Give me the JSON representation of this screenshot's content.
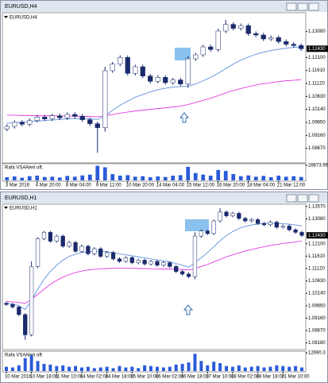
{
  "chart_data": [
    {
      "type": "candlestick",
      "title": "EURUSD,H4",
      "up_color": "#ffffff",
      "down_color": "#1a2a6c",
      "outline": "#1a2a6c",
      "categories": [
        "3 Mar 2016",
        null,
        null,
        null,
        "4 Mar 20:00",
        null,
        null,
        null,
        "8 Mar 04:00",
        null,
        null,
        null,
        "9 Mar 12:00",
        null,
        null,
        null,
        "10 Mar 20:00",
        null,
        null,
        null,
        "14 Mar 04:00",
        null,
        null,
        null,
        "15 Mar 12:00",
        null,
        null,
        null,
        "16 Mar 20:00",
        null,
        null,
        null,
        "18 Mar 04:00",
        null,
        null,
        null,
        "21 Mar 12:00",
        null,
        null,
        null
      ],
      "open": [
        1.094,
        1.095,
        1.0965,
        1.0958,
        1.0972,
        1.0985,
        1.0978,
        1.099,
        1.0982,
        1.0995,
        1.0988,
        1.0975,
        1.096,
        1.0945,
        1.116,
        1.1185,
        1.121,
        1.115,
        1.1175,
        1.114,
        1.112,
        1.1135,
        1.1115,
        1.1125,
        1.111,
        1.1205,
        1.122,
        1.125,
        1.124,
        1.131,
        1.1335,
        1.132,
        1.133,
        1.13,
        1.1295,
        1.128,
        1.1285,
        1.127,
        1.126,
        1.1255
      ],
      "high": [
        1.0958,
        1.0973,
        1.0973,
        1.098,
        1.0993,
        1.0993,
        1.0998,
        1.0998,
        1.1003,
        1.1003,
        1.0996,
        1.0983,
        1.0968,
        1.1175,
        1.1193,
        1.1218,
        1.1218,
        1.1183,
        1.1183,
        1.1148,
        1.1143,
        1.1143,
        1.1133,
        1.1133,
        1.1215,
        1.1228,
        1.1258,
        1.1258,
        1.1318,
        1.1352,
        1.1343,
        1.1338,
        1.1338,
        1.1308,
        1.1303,
        1.1293,
        1.1293,
        1.1278,
        1.1268,
        1.1263
      ],
      "low": [
        1.0932,
        1.0942,
        1.095,
        1.095,
        1.0964,
        1.097,
        1.097,
        1.0974,
        1.0974,
        1.098,
        1.0967,
        1.0952,
        1.085,
        1.093,
        1.1152,
        1.1177,
        1.1142,
        1.1142,
        1.1132,
        1.1112,
        1.1112,
        1.1107,
        1.1107,
        1.1102,
        1.1095,
        1.1197,
        1.1212,
        1.1232,
        1.1232,
        1.1302,
        1.1312,
        1.1312,
        1.1292,
        1.1287,
        1.1272,
        1.1272,
        1.1262,
        1.1252,
        1.1247,
        1.1235
      ],
      "close": [
        1.095,
        1.0965,
        1.0958,
        1.0972,
        1.0985,
        1.0978,
        1.099,
        1.0982,
        1.0995,
        1.0988,
        1.0975,
        1.096,
        1.0945,
        1.116,
        1.1185,
        1.121,
        1.115,
        1.1175,
        1.114,
        1.112,
        1.1135,
        1.1115,
        1.1125,
        1.111,
        1.1205,
        1.122,
        1.125,
        1.124,
        1.131,
        1.1335,
        1.132,
        1.133,
        1.13,
        1.1295,
        1.128,
        1.1285,
        1.127,
        1.126,
        1.1255,
        1.1243
      ],
      "ma_lines": [
        {
          "color": "#6f9be0",
          "values": [
            1.0962,
            1.0964,
            1.0966,
            1.0968,
            1.097,
            1.0972,
            1.0974,
            1.0976,
            1.0978,
            1.0979,
            1.0979,
            1.0978,
            1.0976,
            1.099,
            1.101,
            1.103,
            1.1045,
            1.106,
            1.107,
            1.108,
            1.1088,
            1.1094,
            1.1098,
            1.11,
            1.1102,
            1.111,
            1.1122,
            1.1135,
            1.115,
            1.1168,
            1.1185,
            1.12,
            1.1212,
            1.1222,
            1.123,
            1.1236,
            1.1241,
            1.1245,
            1.1248,
            1.125
          ]
        },
        {
          "color": "#e020e0",
          "values": [
            1.0992,
            1.0992,
            1.0991,
            1.0991,
            1.099,
            1.099,
            1.099,
            1.0989,
            1.0989,
            1.0988,
            1.0988,
            1.0987,
            1.0986,
            1.099,
            1.0995,
            1.1,
            1.1004,
            1.1008,
            1.1011,
            1.1014,
            1.1017,
            1.102,
            1.1023,
            1.1026,
            1.1032,
            1.104,
            1.1048,
            1.1056,
            1.1066,
            1.1076,
            1.1085,
            1.1093,
            1.11,
            1.1106,
            1.1111,
            1.1115,
            1.1119,
            1.1122,
            1.1124,
            1.1126
          ]
        }
      ],
      "ylim": [
        1.0818,
        1.1373
      ],
      "yticks": [
        {
          "value": 1.1308,
          "label": "1.13080"
        },
        {
          "value": 1.121,
          "label": "1.12100"
        },
        {
          "value": 1.1161,
          "label": "1.11610"
        },
        {
          "value": 1.1112,
          "label": "1.11120"
        },
        {
          "value": 1.1063,
          "label": "1.10630"
        },
        {
          "value": 1.1014,
          "label": "1.10140"
        },
        {
          "value": 1.0965,
          "label": "1.09650"
        },
        {
          "value": 1.0916,
          "label": "1.09160"
        },
        {
          "value": 1.0867,
          "label": "1.08670"
        }
      ],
      "last_price": {
        "value": 1.1243,
        "label": "1.12430"
      },
      "indicator": {
        "title": "Rafa VSA",
        "status": "Alert off.",
        "color": "#2a5bd7",
        "ylim": [
          0,
          28873.96
        ],
        "yticks": [
          28873.96
        ],
        "values": [
          6000,
          7500,
          5000,
          8000,
          9000,
          6500,
          7000,
          5500,
          8500,
          7000,
          9500,
          11000,
          28000,
          25000,
          12000,
          9000,
          10000,
          7000,
          8000,
          6000,
          7500,
          6500,
          9000,
          10000,
          26000,
          14000,
          11000,
          9000,
          20000,
          18000,
          12000,
          8000,
          9500,
          7000,
          8500,
          6000,
          9000,
          7000,
          8000,
          6500
        ]
      }
    },
    {
      "type": "candlestick",
      "title": "EURUSD,H1",
      "up_color": "#ffffff",
      "down_color": "#1a2a6c",
      "outline": "#1a2a6c",
      "categories": [
        "10 Mar 2016",
        null,
        null,
        null,
        "10 Mar 18:00",
        null,
        null,
        null,
        "11 Mar 10:00",
        null,
        null,
        null,
        "14 Mar 02:00",
        null,
        null,
        null,
        "14 Mar 18:00",
        null,
        null,
        null,
        "15 Mar 10:00",
        null,
        null,
        null,
        "16 Mar 02:00",
        null,
        null,
        null,
        "16 Mar 18:00",
        null,
        null,
        null,
        "17 Mar 10:00",
        null,
        null,
        null,
        "18 Mar 02:00",
        null,
        null,
        null,
        "18 Mar 18:00",
        null,
        null,
        null,
        "21 Mar 10:00",
        null,
        null,
        null
      ],
      "open": [
        1.0975,
        1.097,
        1.096,
        1.093,
        1.085,
        1.112,
        1.123,
        1.1255,
        1.122,
        1.124,
        1.12,
        1.1215,
        1.118,
        1.12,
        1.117,
        1.119,
        1.116,
        1.1175,
        1.115,
        1.114,
        1.1155,
        1.1135,
        1.1145,
        1.113,
        1.114,
        1.1125,
        1.1135,
        1.112,
        1.11,
        1.109,
        1.108,
        1.124,
        1.126,
        1.125,
        1.13,
        1.1335,
        1.132,
        1.133,
        1.131,
        1.13,
        1.1305,
        1.129,
        1.1285,
        1.1295,
        1.1275,
        1.128,
        1.1265,
        1.1255
      ],
      "high": [
        1.0981,
        1.0976,
        1.0966,
        1.0936,
        1.114,
        1.1236,
        1.1261,
        1.1261,
        1.1246,
        1.1246,
        1.1221,
        1.1221,
        1.1206,
        1.1206,
        1.1196,
        1.1196,
        1.1181,
        1.1181,
        1.1156,
        1.1161,
        1.1161,
        1.1151,
        1.1151,
        1.1146,
        1.1146,
        1.1141,
        1.1141,
        1.1126,
        1.1106,
        1.1096,
        1.1255,
        1.1266,
        1.1266,
        1.1306,
        1.135,
        1.1341,
        1.1336,
        1.1336,
        1.1316,
        1.1311,
        1.1311,
        1.1296,
        1.1301,
        1.1301,
        1.1286,
        1.1286,
        1.1271,
        1.1261
      ],
      "low": [
        1.0964,
        1.0954,
        1.0924,
        1.083,
        1.0844,
        1.1114,
        1.1224,
        1.1214,
        1.1214,
        1.1194,
        1.1194,
        1.1174,
        1.1174,
        1.1164,
        1.1164,
        1.1154,
        1.1154,
        1.1144,
        1.1134,
        1.1134,
        1.1129,
        1.1129,
        1.1124,
        1.1124,
        1.1119,
        1.1119,
        1.1114,
        1.1094,
        1.1084,
        1.1074,
        1.107,
        1.1234,
        1.1244,
        1.1244,
        1.1294,
        1.1314,
        1.1314,
        1.1304,
        1.1294,
        1.1294,
        1.1284,
        1.1279,
        1.1279,
        1.1269,
        1.1269,
        1.1259,
        1.1249,
        1.1237
      ],
      "close": [
        1.097,
        1.096,
        1.093,
        1.085,
        1.112,
        1.123,
        1.1255,
        1.122,
        1.124,
        1.12,
        1.1215,
        1.118,
        1.12,
        1.117,
        1.119,
        1.116,
        1.1175,
        1.115,
        1.114,
        1.1155,
        1.1135,
        1.1145,
        1.113,
        1.114,
        1.1125,
        1.1135,
        1.112,
        1.11,
        1.109,
        1.108,
        1.124,
        1.126,
        1.125,
        1.13,
        1.1335,
        1.132,
        1.133,
        1.131,
        1.13,
        1.1305,
        1.129,
        1.1285,
        1.1295,
        1.1275,
        1.128,
        1.1265,
        1.1255,
        1.1243
      ],
      "ma_lines": [
        {
          "color": "#6f9be0",
          "values": [
            1.0975,
            1.0972,
            1.0965,
            1.095,
            1.0985,
            1.103,
            1.107,
            1.11,
            1.1125,
            1.1145,
            1.116,
            1.1168,
            1.1175,
            1.1178,
            1.118,
            1.118,
            1.1178,
            1.1175,
            1.117,
            1.1166,
            1.1162,
            1.1158,
            1.1154,
            1.115,
            1.1146,
            1.1142,
            1.1138,
            1.1132,
            1.1125,
            1.1117,
            1.1135,
            1.1155,
            1.1175,
            1.1198,
            1.1222,
            1.1242,
            1.1258,
            1.127,
            1.1278,
            1.1284,
            1.1288,
            1.129,
            1.1291,
            1.129,
            1.1289,
            1.1287,
            1.1284,
            1.128
          ]
        },
        {
          "color": "#e020e0",
          "values": [
            1.0982,
            1.098,
            1.0978,
            1.0974,
            1.099,
            1.101,
            1.103,
            1.105,
            1.1065,
            1.1078,
            1.1088,
            1.1096,
            1.1102,
            1.1106,
            1.1109,
            1.1111,
            1.1112,
            1.1113,
            1.1113,
            1.1113,
            1.1113,
            1.1112,
            1.1112,
            1.1111,
            1.1111,
            1.111,
            1.111,
            1.1109,
            1.1108,
            1.1106,
            1.1112,
            1.112,
            1.1128,
            1.1138,
            1.1148,
            1.1158,
            1.1166,
            1.1174,
            1.1181,
            1.1187,
            1.1193,
            1.1198,
            1.1203,
            1.1207,
            1.1211,
            1.1214,
            1.1217,
            1.122
          ]
        }
      ],
      "ylim": [
        1.0801,
        1.1366
      ],
      "yticks": [
        {
          "value": 1.1357,
          "label": "1.13570"
        },
        {
          "value": 1.1308,
          "label": "1.13080"
        },
        {
          "value": 1.121,
          "label": "1.12100"
        },
        {
          "value": 1.1161,
          "label": "1.11610"
        },
        {
          "value": 1.1112,
          "label": "1.11120"
        },
        {
          "value": 1.1063,
          "label": "1.10630"
        },
        {
          "value": 1.1014,
          "label": "1.10140"
        },
        {
          "value": 1.0965,
          "label": "1.09650"
        },
        {
          "value": 1.0916,
          "label": "1.09160"
        },
        {
          "value": 1.0867,
          "label": "1.08670"
        },
        {
          "value": 1.0818,
          "label": "1.08180"
        }
      ],
      "last_price": {
        "value": 1.1243,
        "label": "1.12430"
      },
      "indicator": {
        "title": "Rafa VSA",
        "status": "Alert off.",
        "color": "#2a5bd7",
        "ylim": [
          0,
          12690.3
        ],
        "yticks": [
          12690.3
        ],
        "values": [
          3000,
          2500,
          4000,
          9000,
          11000,
          7000,
          5000,
          4500,
          3500,
          4000,
          3000,
          3500,
          2500,
          3000,
          2000,
          2500,
          3000,
          2000,
          3500,
          2500,
          3000,
          2000,
          4000,
          3500,
          3000,
          2500,
          3000,
          4500,
          5000,
          6000,
          12000,
          7000,
          4000,
          6500,
          5500,
          3500,
          3000,
          4000,
          2500,
          3000,
          3500,
          2500,
          3000,
          4000,
          3500,
          3000,
          3500,
          2500
        ]
      }
    }
  ]
}
